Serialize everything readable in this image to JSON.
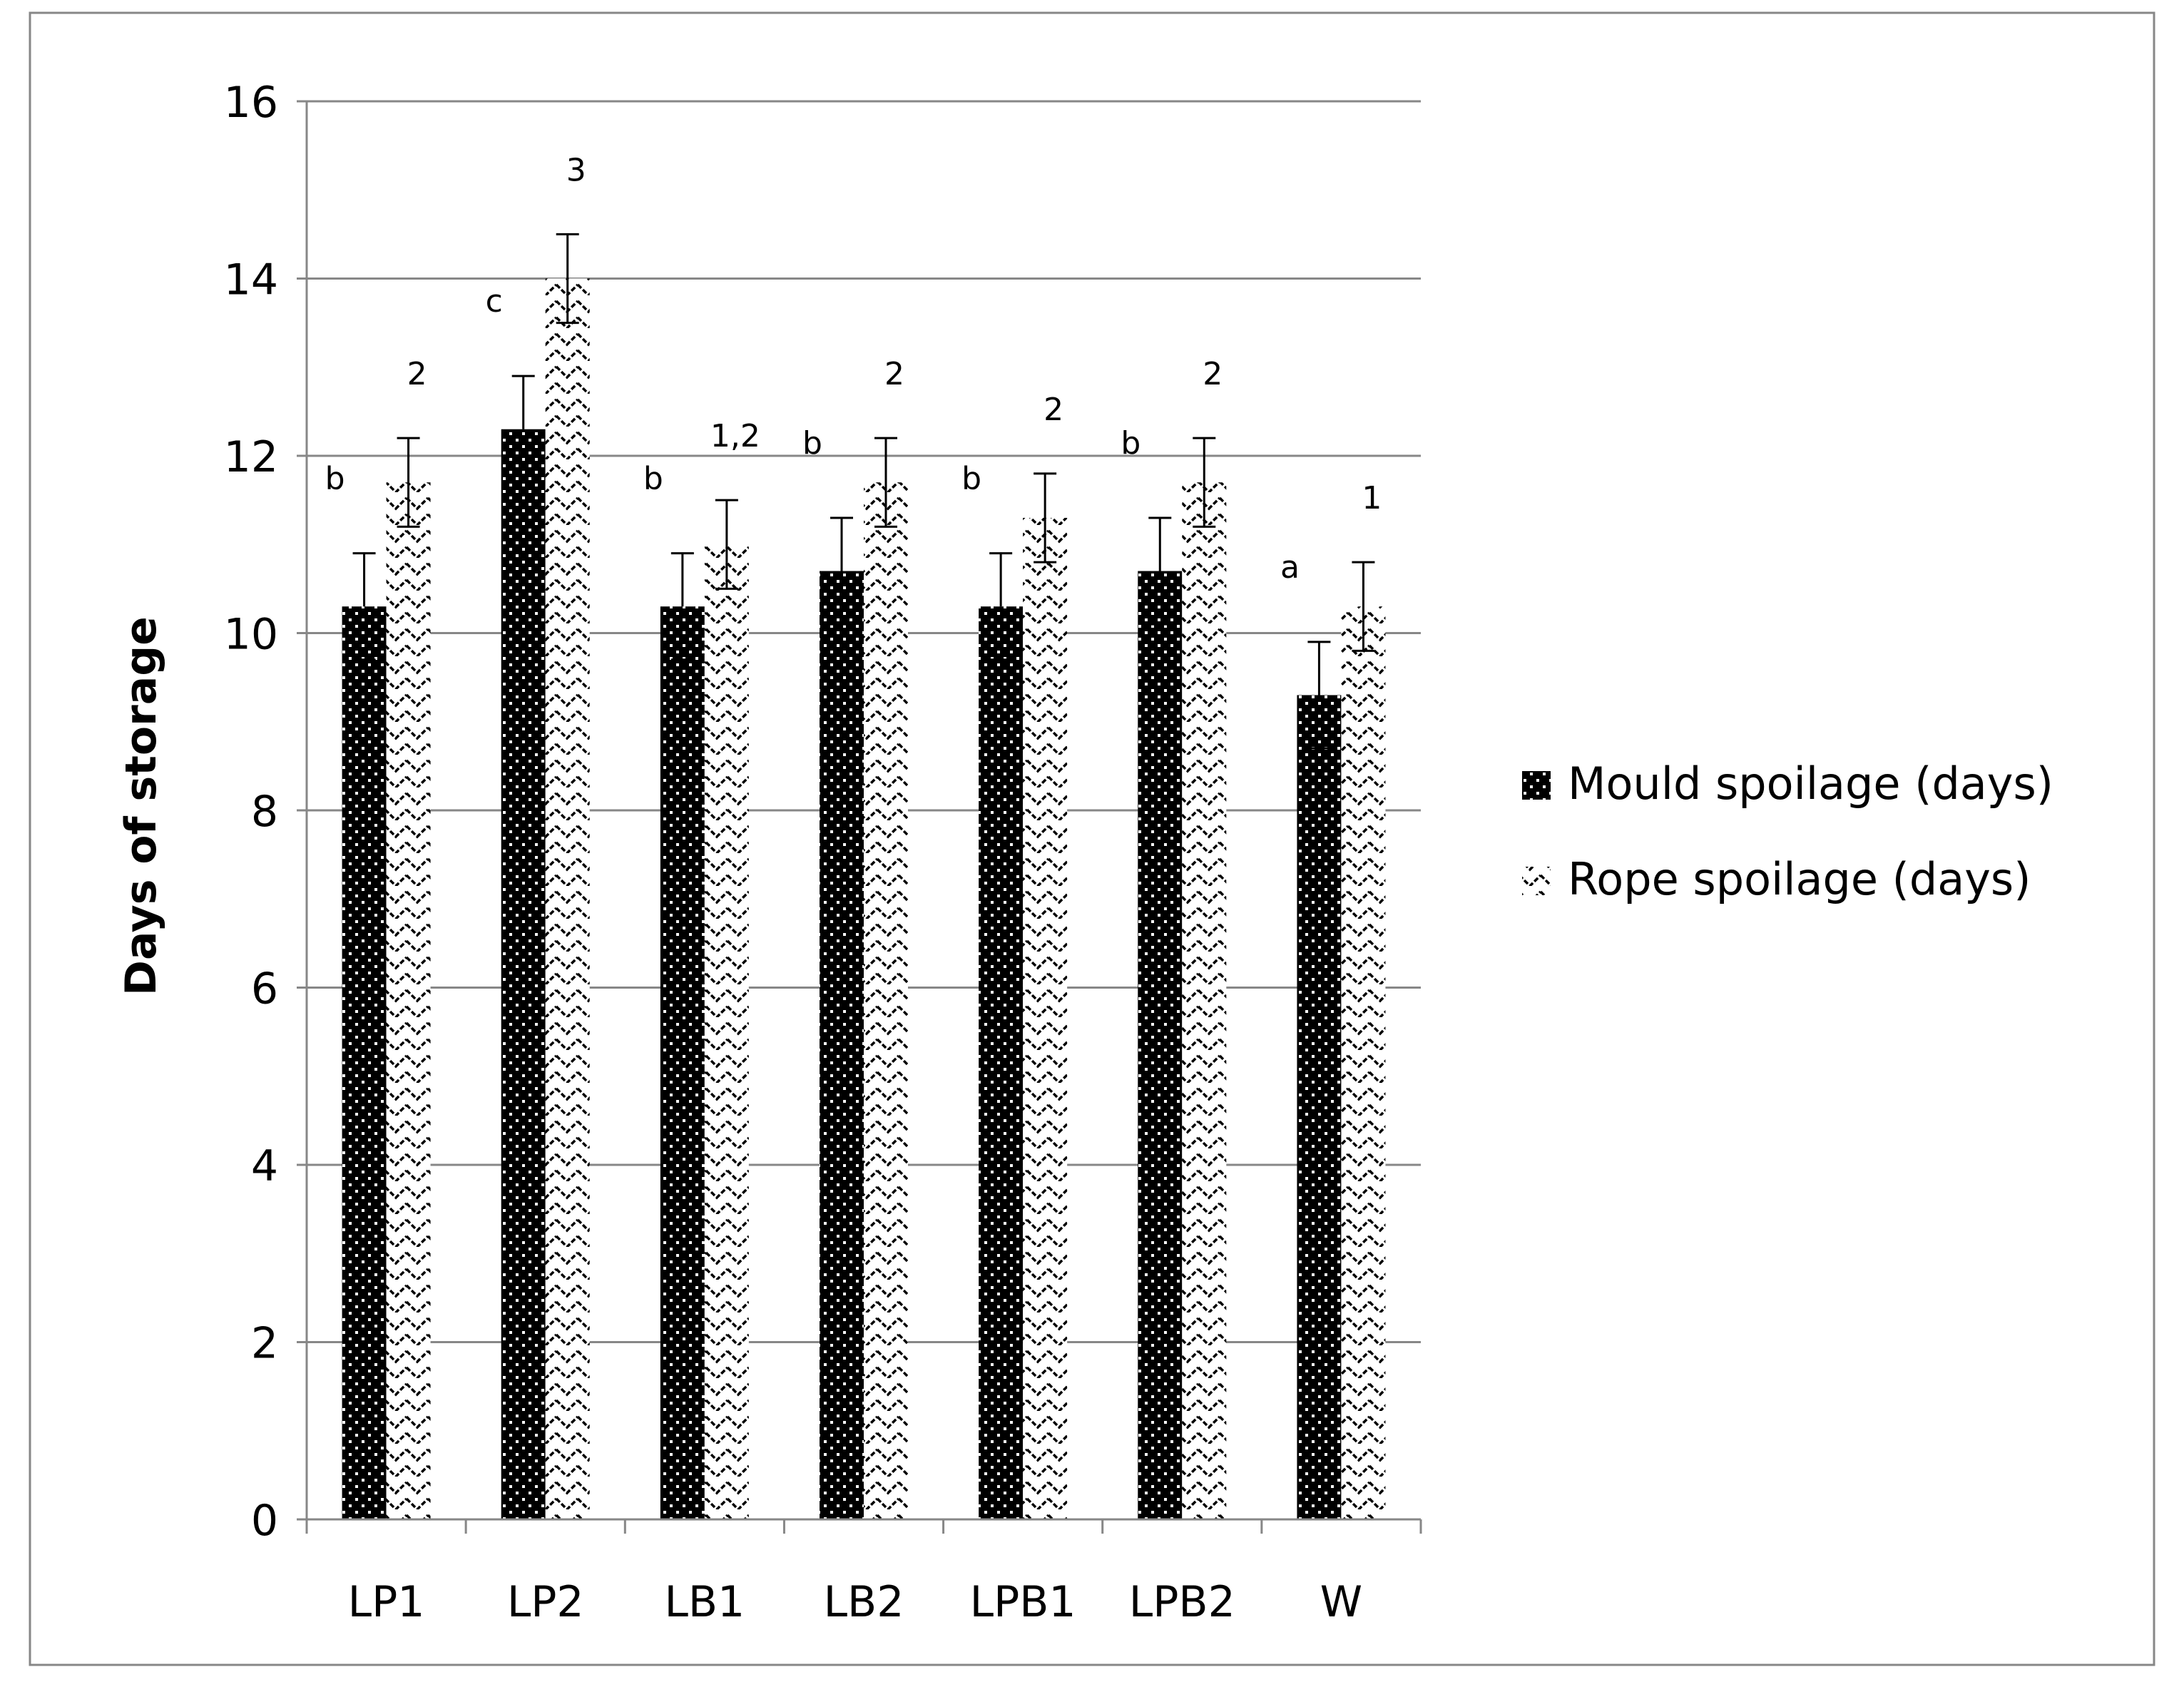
{
  "chart_data": {
    "type": "bar",
    "title": "",
    "xlabel": "",
    "ylabel": "Days of storage",
    "ylim": [
      0,
      16
    ],
    "yticks": [
      0,
      2,
      4,
      6,
      8,
      10,
      12,
      14,
      16
    ],
    "grid": true,
    "legend_position": "right",
    "categories": [
      "LP1",
      "LP2",
      "LB1",
      "LB2",
      "LPB1",
      "LPB2",
      "W"
    ],
    "series": [
      {
        "name": "Mould spoilage (days)",
        "pattern": "dotted",
        "color": "#000000",
        "values": [
          10.3,
          12.3,
          10.3,
          10.7,
          10.3,
          10.7,
          9.3
        ],
        "errors": [
          0.6,
          0.6,
          0.6,
          0.6,
          0.6,
          0.6,
          0.6
        ],
        "labels": [
          "b",
          "c",
          "b",
          "b",
          "b",
          "b",
          "a"
        ]
      },
      {
        "name": "Rope spoilage (days)",
        "pattern": "zigzag",
        "color": "#000000",
        "values": [
          11.7,
          14.0,
          11.0,
          11.7,
          11.3,
          11.7,
          10.3
        ],
        "errors": [
          0.5,
          0.5,
          0.5,
          0.5,
          0.5,
          0.5,
          0.5
        ],
        "labels": [
          "2",
          "3",
          "1,2",
          "2",
          "2",
          "2",
          "1"
        ]
      }
    ]
  }
}
